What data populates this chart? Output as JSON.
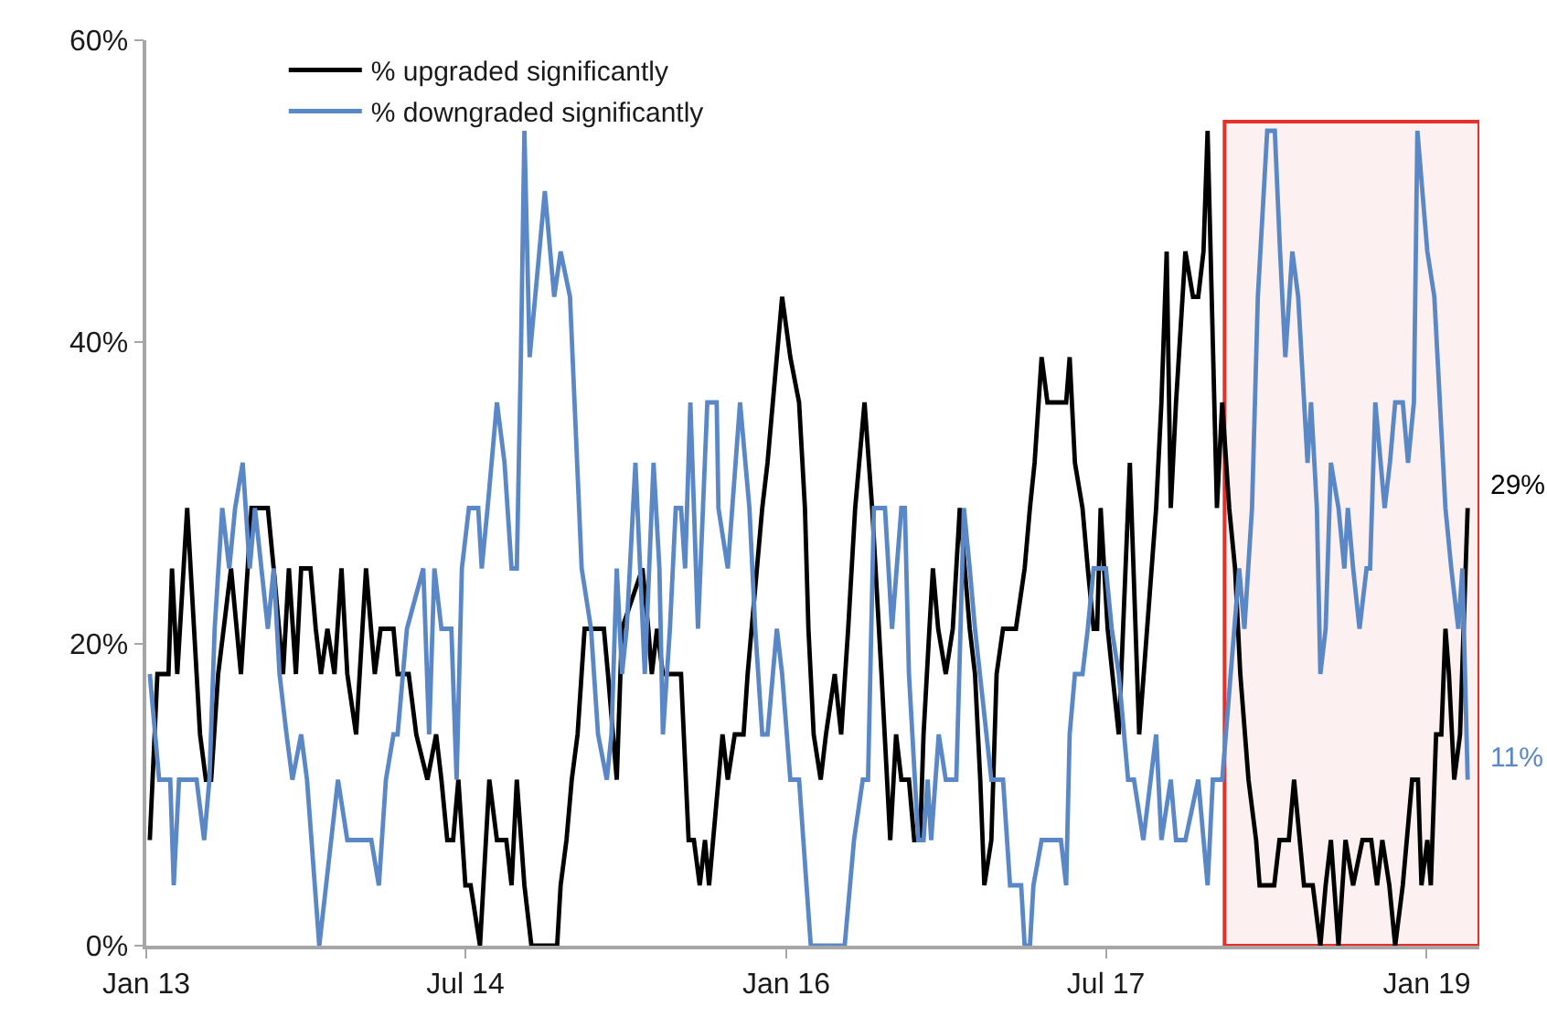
{
  "chart_data": {
    "type": "line",
    "xlim": [
      "2013-01-01",
      "2019-04-01"
    ],
    "xticks": [
      {
        "value": "2013-01-01",
        "label": "Jan 13"
      },
      {
        "value": "2014-07-01",
        "label": "Jul 14"
      },
      {
        "value": "2016-01-01",
        "label": "Jan 16"
      },
      {
        "value": "2017-07-01",
        "label": "Jul 17"
      },
      {
        "value": "2019-01-01",
        "label": "Jan 19"
      }
    ],
    "ylim": [
      0,
      60
    ],
    "yticks": [
      {
        "value": 0,
        "label": "0%"
      },
      {
        "value": 20,
        "label": "20%"
      },
      {
        "value": 40,
        "label": "40%"
      },
      {
        "value": 60,
        "label": "60%"
      }
    ],
    "legend": "top left",
    "series": [
      {
        "name": "% upgraded significantly",
        "color": "#000000",
        "x": [
          "2013-01-07",
          "2013-01-20",
          "2013-02-08",
          "2013-02-14",
          "2013-02-23",
          "2013-03-12",
          "2013-04-03",
          "2013-04-13",
          "2013-04-22",
          "2013-05-04",
          "2013-05-26",
          "2013-06-12",
          "2013-06-30",
          "2013-07-28",
          "2013-08-07",
          "2013-08-23",
          "2013-09-02",
          "2013-09-14",
          "2013-09-23",
          "2013-10-09",
          "2013-10-18",
          "2013-10-27",
          "2013-11-07",
          "2013-11-19",
          "2013-12-01",
          "2013-12-11",
          "2013-12-26",
          "2014-01-12",
          "2014-01-27",
          "2014-02-06",
          "2014-02-28",
          "2014-03-07",
          "2014-03-26",
          "2014-04-08",
          "2014-04-27",
          "2014-05-12",
          "2014-05-21",
          "2014-05-31",
          "2014-06-10",
          "2014-06-19",
          "2014-07-01",
          "2014-07-10",
          "2014-07-26",
          "2014-08-11",
          "2014-08-24",
          "2014-09-09",
          "2014-09-18",
          "2014-09-27",
          "2014-10-10",
          "2014-10-22",
          "2014-12-05",
          "2014-12-11",
          "2014-12-21",
          "2014-12-30",
          "2015-01-09",
          "2015-01-21",
          "2015-02-23",
          "2015-03-02",
          "2015-03-17",
          "2015-03-26",
          "2015-04-30",
          "2015-05-10",
          "2015-05-16",
          "2015-05-25",
          "2015-06-04",
          "2015-07-05",
          "2015-07-18",
          "2015-07-27",
          "2015-08-06",
          "2015-08-15",
          "2015-08-22",
          "2015-09-14",
          "2015-09-23",
          "2015-10-05",
          "2015-10-20",
          "2015-10-27",
          "2015-11-21",
          "2015-11-30",
          "2015-12-25",
          "2016-01-08",
          "2016-01-23",
          "2016-02-02",
          "2016-02-08",
          "2016-02-17",
          "2016-02-29",
          "2016-03-09",
          "2016-03-24",
          "2016-04-04",
          "2016-04-16",
          "2016-04-28",
          "2016-05-14",
          "2016-05-27",
          "2016-06-12",
          "2016-06-27",
          "2016-07-07",
          "2016-07-16",
          "2016-07-29",
          "2016-08-07",
          "2016-08-17",
          "2016-08-23",
          "2016-09-02",
          "2016-09-08",
          "2016-09-17",
          "2016-09-30",
          "2016-10-12",
          "2016-10-24",
          "2016-11-10",
          "2016-11-19",
          "2016-11-28",
          "2016-12-05",
          "2016-12-17",
          "2016-12-26",
          "2017-01-06",
          "2017-01-28",
          "2017-02-12",
          "2017-02-21",
          "2017-03-01",
          "2017-03-13",
          "2017-03-23",
          "2017-04-24",
          "2017-04-30",
          "2017-05-09",
          "2017-05-22",
          "2017-05-31",
          "2017-06-10",
          "2017-06-16",
          "2017-06-22",
          "2017-07-04",
          "2017-07-23",
          "2017-08-11",
          "2017-08-27",
          "2017-09-25",
          "2017-10-04",
          "2017-10-13",
          "2017-10-20",
          "2017-10-29",
          "2017-11-14",
          "2017-11-27",
          "2017-12-06",
          "2017-12-15",
          "2017-12-22",
          "2018-01-07",
          "2018-01-16",
          "2018-01-28",
          "2018-02-07",
          "2018-02-16",
          "2018-03-02",
          "2018-03-15",
          "2018-03-21",
          "2018-04-15",
          "2018-04-24",
          "2018-05-10",
          "2018-05-19",
          "2018-06-05",
          "2018-06-20",
          "2018-07-03",
          "2018-07-12",
          "2018-07-21",
          "2018-08-03",
          "2018-08-15",
          "2018-08-28",
          "2018-09-13",
          "2018-09-28",
          "2018-10-08",
          "2018-10-17",
          "2018-10-29",
          "2018-11-08",
          "2018-11-21",
          "2018-12-07",
          "2018-12-17",
          "2018-12-23",
          "2019-01-02",
          "2019-01-08",
          "2019-01-17",
          "2019-01-26",
          "2019-02-02",
          "2019-02-08",
          "2019-02-17",
          "2019-02-27",
          "2019-03-12"
        ],
        "values": [
          7,
          18,
          18,
          25,
          18,
          29,
          14,
          11,
          11,
          18,
          25,
          18,
          29,
          29,
          25,
          18,
          25,
          18,
          25,
          25,
          21,
          18,
          21,
          18,
          25,
          18,
          14,
          25,
          18,
          21,
          21,
          18,
          18,
          14,
          11,
          14,
          11,
          7,
          7,
          11,
          4,
          4,
          0,
          11,
          7,
          7,
          4,
          11,
          4,
          0,
          0,
          4,
          7,
          11,
          14,
          21,
          21,
          18,
          11,
          21,
          25,
          21,
          18,
          21,
          18,
          18,
          7,
          7,
          4,
          7,
          4,
          14,
          11,
          14,
          14,
          18,
          29,
          32,
          43,
          39,
          36,
          29,
          21,
          14,
          11,
          14,
          18,
          14,
          21,
          29,
          36,
          29,
          18,
          7,
          14,
          11,
          11,
          7,
          7,
          14,
          21,
          25,
          21,
          18,
          21,
          29,
          21,
          18,
          11,
          4,
          7,
          18,
          21,
          21,
          25,
          29,
          32,
          39,
          36,
          36,
          39,
          32,
          29,
          25,
          21,
          21,
          29,
          21,
          14,
          32,
          14,
          29,
          36,
          46,
          29,
          36,
          46,
          43,
          43,
          46,
          54,
          29,
          36,
          29,
          25,
          18,
          11,
          7,
          4,
          4,
          7,
          7,
          11,
          4,
          4,
          0,
          4,
          7,
          0,
          7,
          4,
          7,
          7,
          4,
          7,
          4,
          0,
          4,
          11,
          11,
          4,
          7,
          4,
          14,
          14,
          21,
          18,
          11,
          14,
          29
        ]
      },
      {
        "name": "% downgraded significantly",
        "color": "#5a87c5",
        "x": [
          "2013-01-07",
          "2013-01-23",
          "2013-02-11",
          "2013-02-17",
          "2013-02-26",
          "2013-03-28",
          "2013-04-10",
          "2013-04-19",
          "2013-04-28",
          "2013-05-11",
          "2013-05-23",
          "2013-06-02",
          "2013-06-15",
          "2013-06-27",
          "2013-07-06",
          "2013-07-28",
          "2013-08-07",
          "2013-08-17",
          "2013-08-29",
          "2013-09-08",
          "2013-09-23",
          "2013-10-03",
          "2013-10-24",
          "2013-11-25",
          "2013-12-11",
          "2014-01-21",
          "2014-02-03",
          "2014-02-15",
          "2014-02-28",
          "2014-03-07",
          "2014-03-23",
          "2014-04-20",
          "2014-04-30",
          "2014-05-09",
          "2014-05-21",
          "2014-06-07",
          "2014-06-16",
          "2014-06-25",
          "2014-07-07",
          "2014-07-23",
          "2014-07-29",
          "2014-08-08",
          "2014-08-24",
          "2014-09-06",
          "2014-09-18",
          "2014-09-27",
          "2014-10-04",
          "2014-10-10",
          "2014-10-19",
          "2014-11-14",
          "2014-11-30",
          "2014-12-11",
          "2014-12-27",
          "2015-01-16",
          "2015-02-01",
          "2015-02-13",
          "2015-02-28",
          "2015-03-08",
          "2015-03-17",
          "2015-03-26",
          "2015-04-03",
          "2015-04-18",
          "2015-05-04",
          "2015-05-19",
          "2015-05-29",
          "2015-06-04",
          "2015-06-16",
          "2015-06-26",
          "2015-07-05",
          "2015-07-12",
          "2015-07-21",
          "2015-08-03",
          "2015-08-19",
          "2015-09-04",
          "2015-09-07",
          "2015-09-23",
          "2015-10-14",
          "2015-10-30",
          "2015-11-09",
          "2015-11-21",
          "2015-11-30",
          "2015-12-16",
          "2015-12-25",
          "2016-01-08",
          "2016-01-23",
          "2016-02-12",
          "2016-04-10",
          "2016-04-26",
          "2016-05-11",
          "2016-05-20",
          "2016-05-30",
          "2016-06-18",
          "2016-06-30",
          "2016-07-16",
          "2016-07-22",
          "2016-07-29",
          "2016-08-14",
          "2016-08-23",
          "2016-08-30",
          "2016-09-05",
          "2016-09-18",
          "2016-09-30",
          "2016-10-18",
          "2016-10-31",
          "2016-11-10",
          "2016-11-19",
          "2016-12-17",
          "2017-01-06",
          "2017-01-18",
          "2017-02-06",
          "2017-02-12",
          "2017-02-21",
          "2017-02-27",
          "2017-03-13",
          "2017-04-15",
          "2017-04-24",
          "2017-04-30",
          "2017-05-09",
          "2017-05-22",
          "2017-05-31",
          "2017-06-10",
          "2017-07-01",
          "2017-07-11",
          "2017-07-23",
          "2017-08-08",
          "2017-08-18",
          "2017-09-03",
          "2017-09-25",
          "2017-10-04",
          "2017-10-20",
          "2017-10-29",
          "2017-11-14",
          "2017-12-06",
          "2017-12-22",
          "2017-12-31",
          "2018-01-16",
          "2018-02-14",
          "2018-02-23",
          "2018-03-08",
          "2018-03-18",
          "2018-04-03",
          "2018-04-16",
          "2018-04-25",
          "2018-05-04",
          "2018-05-16",
          "2018-05-26",
          "2018-06-11",
          "2018-06-17",
          "2018-06-27",
          "2018-07-03",
          "2018-07-12",
          "2018-07-21",
          "2018-08-03",
          "2018-08-13",
          "2018-08-19",
          "2018-08-28",
          "2018-09-08",
          "2018-09-20",
          "2018-09-26",
          "2018-10-05",
          "2018-10-21",
          "2018-10-30",
          "2018-11-08",
          "2018-11-21",
          "2018-11-30",
          "2018-12-10",
          "2018-12-16",
          "2019-01-02",
          "2019-01-14",
          "2019-02-02",
          "2019-02-12",
          "2019-02-24",
          "2019-03-03",
          "2019-03-12"
        ],
        "values": [
          18,
          11,
          11,
          4,
          11,
          11,
          7,
          11,
          21,
          29,
          25,
          29,
          32,
          25,
          29,
          21,
          25,
          18,
          14,
          11,
          14,
          11,
          0,
          11,
          7,
          7,
          4,
          11,
          14,
          14,
          21,
          25,
          14,
          25,
          21,
          21,
          11,
          25,
          29,
          29,
          25,
          29,
          36,
          32,
          25,
          25,
          39,
          54,
          39,
          50,
          43,
          46,
          43,
          25,
          21,
          14,
          11,
          14,
          25,
          18,
          21,
          32,
          18,
          32,
          25,
          14,
          21,
          29,
          29,
          25,
          36,
          21,
          36,
          36,
          29,
          25,
          36,
          29,
          21,
          14,
          14,
          21,
          18,
          11,
          11,
          0,
          0,
          7,
          11,
          11,
          29,
          29,
          21,
          29,
          29,
          18,
          7,
          7,
          11,
          7,
          14,
          11,
          11,
          29,
          25,
          21,
          11,
          11,
          4,
          4,
          0,
          0,
          4,
          7,
          7,
          4,
          14,
          18,
          18,
          21,
          25,
          25,
          21,
          18,
          11,
          11,
          7,
          14,
          7,
          11,
          7,
          7,
          11,
          4,
          11,
          11,
          25,
          21,
          29,
          43,
          54,
          54,
          46,
          39,
          46,
          43,
          32,
          36,
          29,
          18,
          21,
          32,
          29,
          25,
          29,
          25,
          21,
          25,
          25,
          36,
          29,
          32,
          36,
          36,
          32,
          36,
          54,
          46,
          43,
          29,
          25,
          21,
          25,
          11
        ]
      }
    ],
    "bands": [
      {
        "axis": "x",
        "from": "2018-01-20",
        "to": "2019-04-01",
        "color": "#e8302a"
      }
    ],
    "annotations": [
      {
        "text": "29%",
        "x": "2019-03-12",
        "y": 29
      },
      {
        "text": "11%",
        "x": "2019-03-12",
        "y": 11
      }
    ]
  }
}
